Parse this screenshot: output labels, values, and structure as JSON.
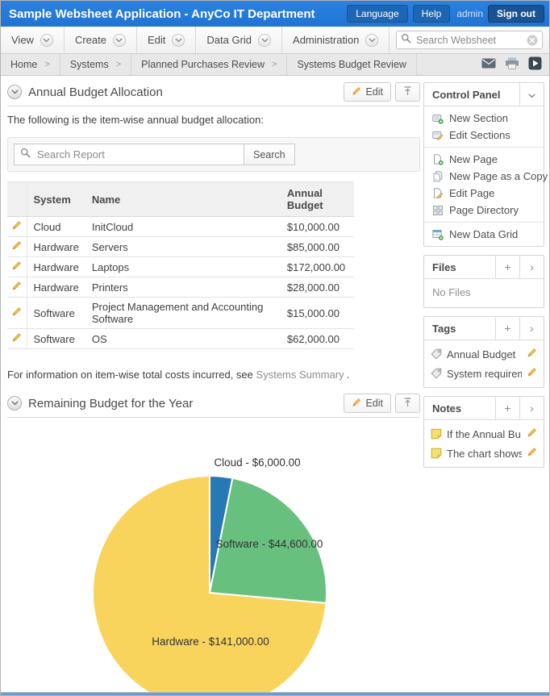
{
  "header": {
    "title": "Sample Websheet Application - AnyCo IT Department",
    "language_label": "Language",
    "help_label": "Help",
    "username": "admin",
    "signout_label": "Sign out"
  },
  "menubar": {
    "items": [
      "View",
      "Create",
      "Edit",
      "Data Grid",
      "Administration"
    ],
    "search_placeholder": "Search Websheet"
  },
  "breadcrumb": [
    "Home",
    "Systems",
    "Planned Purchases Review",
    "Systems Budget Review"
  ],
  "sections": {
    "budget": {
      "title": "Annual Budget Allocation",
      "edit_label": "Edit",
      "intro": "The following is the item-wise annual budget allocation:",
      "search_placeholder": "Search Report",
      "search_button": "Search",
      "table": {
        "columns": [
          "System",
          "Name",
          "Annual Budget"
        ],
        "rows": [
          {
            "system": "Cloud",
            "name": "InitCloud",
            "budget": "$10,000.00"
          },
          {
            "system": "Hardware",
            "name": "Servers",
            "budget": "$85,000.00"
          },
          {
            "system": "Hardware",
            "name": "Laptops",
            "budget": "$172,000.00"
          },
          {
            "system": "Hardware",
            "name": "Printers",
            "budget": "$28,000.00"
          },
          {
            "system": "Software",
            "name": "Project Management and Accounting Software",
            "budget": "$15,000.00"
          },
          {
            "system": "Software",
            "name": "OS",
            "budget": "$62,000.00"
          }
        ]
      },
      "footer_before": "For information on item-wise total costs incurred, see",
      "footer_link": "Systems Summary",
      "footer_after": "."
    },
    "chart": {
      "title": "Remaining Budget for the Year",
      "edit_label": "Edit"
    }
  },
  "chart_data": {
    "type": "pie",
    "title": "Remaining Budget for the Year",
    "categories": [
      "Cloud",
      "Software",
      "Hardware"
    ],
    "values": [
      6000,
      44600,
      141000
    ],
    "slice_labels": [
      "Cloud - $6,000.00",
      "Software - $44,600.00",
      "Hardware - $141,000.00"
    ],
    "colors": [
      "#2779b5",
      "#68c07f",
      "#f8d45c"
    ],
    "start_angle": "12 o'clock",
    "direction": "clockwise",
    "legend": "none"
  },
  "sidebar": {
    "control_panel": {
      "title": "Control Panel",
      "groups": [
        [
          {
            "icon": "new-section",
            "label": "New Section"
          },
          {
            "icon": "edit-sections",
            "label": "Edit Sections"
          }
        ],
        [
          {
            "icon": "new-page",
            "label": "New Page"
          },
          {
            "icon": "new-page-copy",
            "label": "New Page as a Copy"
          },
          {
            "icon": "edit-page",
            "label": "Edit Page"
          },
          {
            "icon": "page-directory",
            "label": "Page Directory"
          }
        ],
        [
          {
            "icon": "new-data-grid",
            "label": "New Data Grid"
          }
        ]
      ]
    },
    "files": {
      "title": "Files",
      "empty_text": "No Files"
    },
    "tags": {
      "title": "Tags",
      "items": [
        "Annual Budget",
        "System requirem..."
      ]
    },
    "notes": {
      "title": "Notes",
      "items": [
        "If the Annual Bu...",
        "The chart shows s..."
      ]
    }
  },
  "colors": {
    "header_bg": "#2478d8",
    "header_button_bg": "#1d66b4",
    "signout_bg": "#1a5394",
    "pie_blue": "#2779b5",
    "pie_green": "#68c07f",
    "pie_yellow": "#f8d45c",
    "pencil_orange": "#e8a33d"
  }
}
